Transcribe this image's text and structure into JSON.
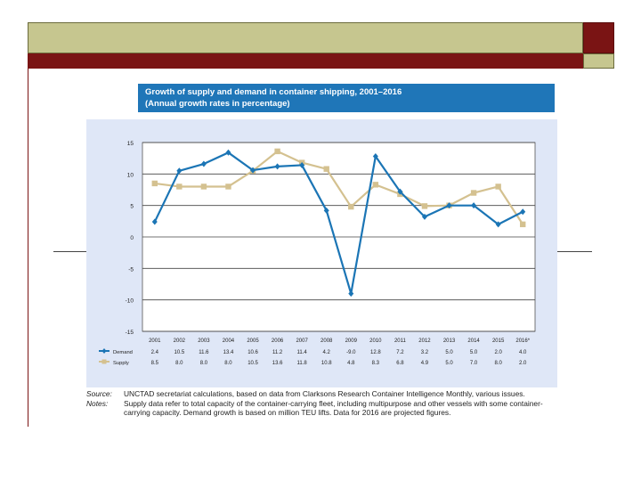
{
  "colors": {
    "demand": "#1b75b5",
    "supply": "#d4c190",
    "title_bg": "#1f76b8",
    "olive": "#c6c68f",
    "maroon": "#7a1414"
  },
  "chart_data": {
    "type": "line",
    "title": "Growth of supply and demand in container shipping, 2001–2016",
    "subtitle": "(Annual growth rates in percentage)",
    "categories": [
      "2001",
      "2002",
      "2003",
      "2004",
      "2005",
      "2006",
      "2007",
      "2008",
      "2009",
      "2010",
      "2011",
      "2012",
      "2013",
      "2014",
      "2015",
      "2016*"
    ],
    "series": [
      {
        "name": "Demand",
        "values": [
          2.4,
          10.5,
          11.6,
          13.4,
          10.6,
          11.2,
          11.4,
          4.2,
          -9.0,
          12.8,
          7.2,
          3.2,
          5.0,
          5.0,
          2.0,
          4.0
        ],
        "labels": [
          "2.4",
          "10.5",
          "11.6",
          "13.4",
          "10.6",
          "11.2",
          "11.4",
          "4.2",
          "-9.0",
          "12.8",
          "7.2",
          "3.2",
          "5.0",
          "5.0",
          "2.0",
          "4.0"
        ]
      },
      {
        "name": "Supply",
        "values": [
          8.5,
          8.0,
          8.0,
          8.0,
          10.5,
          13.6,
          11.8,
          10.8,
          4.8,
          8.3,
          6.8,
          4.9,
          5.0,
          7.0,
          8.0,
          2.0
        ],
        "labels": [
          "8.5",
          "8.0",
          "8.0",
          "8.0",
          "10.5",
          "13.6",
          "11.8",
          "10.8",
          "4.8",
          "8.3",
          "6.8",
          "4.9",
          "5.0",
          "7.0",
          "8.0",
          "2.0"
        ]
      }
    ],
    "yticks": [
      15,
      10,
      5,
      0,
      -5,
      -10,
      -15
    ],
    "ytick_labels": [
      "15",
      "10",
      "5",
      "0",
      "-5",
      "-10",
      "-15"
    ],
    "ylim": [
      -15,
      15
    ],
    "grid": true,
    "legend": "table-below"
  },
  "notes": {
    "source_label": "Source:",
    "source_text": "UNCTAD secretariat calculations, based on data from Clarksons Research Container Intelligence Monthly, various issues.",
    "notes_label": "Notes:",
    "notes_text": "Supply data refer to total capacity of the container-carrying fleet, including multipurpose and other vessels with some container-carrying capacity. Demand growth is based on million TEU lifts. Data for 2016 are projected figures."
  }
}
